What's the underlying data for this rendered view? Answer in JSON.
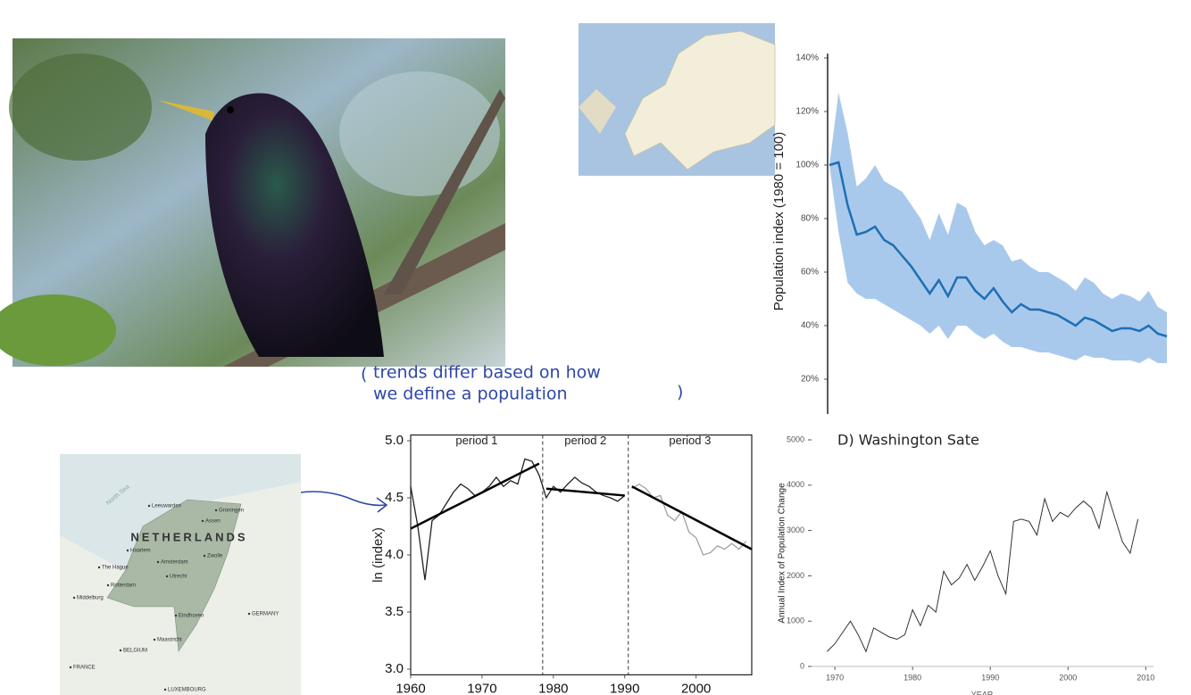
{
  "annotation": {
    "lines": [
      "trends differ based on how",
      "we define a population"
    ]
  },
  "netherlands_map": {
    "country": "NETHERLANDS",
    "sea": "North Sea",
    "places": [
      "Leeuwarden",
      "Groningen",
      "Assen",
      "Haarlem",
      "Amsterdam",
      "Zwolle",
      "The Hague",
      "Utrecht",
      "Rotterdam",
      "Middelburg",
      "Eindhoven",
      "Maastricht",
      "BELGIUM",
      "GERMANY",
      "FRANCE",
      "LUXEMBOURG"
    ]
  },
  "chart_data": [
    {
      "type": "line",
      "y_label": "Population index (1980 = 100)",
      "color": "#1f6fb4",
      "band_color": "#a9c9ec",
      "values": [
        100,
        101,
        85,
        74,
        75,
        77,
        72,
        70,
        66,
        62,
        57,
        52,
        57,
        51,
        58,
        58,
        53,
        50,
        54,
        49,
        45,
        48,
        46,
        46,
        45,
        44,
        42,
        40,
        43,
        42,
        40,
        38,
        39,
        39,
        38,
        40,
        37,
        36
      ],
      "lower": [
        100,
        75,
        56,
        52,
        50,
        50,
        48,
        46,
        44,
        42,
        40,
        37,
        40,
        35,
        40,
        40,
        37,
        35,
        37,
        34,
        32,
        32,
        31,
        30,
        30,
        29,
        28,
        27,
        29,
        28,
        28,
        27,
        27,
        27,
        26,
        28,
        26,
        26
      ],
      "upper": [
        100,
        127,
        112,
        92,
        95,
        100,
        94,
        92,
        90,
        85,
        80,
        72,
        82,
        74,
        86,
        84,
        75,
        70,
        72,
        70,
        64,
        65,
        62,
        60,
        60,
        58,
        56,
        53,
        58,
        56,
        52,
        50,
        52,
        51,
        49,
        53,
        47,
        45
      ],
      "ylim": [
        7,
        143
      ],
      "yticks": [
        {
          "value": 20,
          "label": "20%"
        },
        {
          "value": 40,
          "label": "40%"
        },
        {
          "value": 60,
          "label": "60%"
        },
        {
          "value": 80,
          "label": "80%"
        },
        {
          "value": 100,
          "label": "100%"
        },
        {
          "value": 120,
          "label": "120%"
        },
        {
          "value": 140,
          "label": "140%"
        }
      ]
    },
    {
      "type": "line",
      "y_label": "ln (index)",
      "xlim": [
        1960,
        2007.8
      ],
      "xticks": [
        1960,
        1970,
        1980,
        1990,
        2000
      ],
      "ylim": [
        2.95,
        5.05
      ],
      "yticks": [
        {
          "value": 3,
          "label": "3.0"
        },
        3.5,
        {
          "value": 4,
          "label": "4.0"
        },
        4.5,
        {
          "value": 5,
          "label": "5.0"
        }
      ],
      "periods": [
        "period 1",
        "period 2",
        "period 3"
      ],
      "breaks": [
        1978.5,
        1990.5
      ],
      "series": [
        {
          "color": "#222222",
          "width": 1.3,
          "x": [
            1960,
            1961,
            1962,
            1963,
            1964,
            1965,
            1966,
            1967,
            1968,
            1969,
            1970,
            1971,
            1972,
            1973,
            1974,
            1975,
            1976,
            1977,
            1978,
            1979,
            1980,
            1981,
            1982,
            1983,
            1984,
            1985,
            1986,
            1987,
            1988,
            1989,
            1990
          ],
          "values": [
            4.6,
            4.25,
            3.78,
            4.3,
            4.35,
            4.45,
            4.55,
            4.62,
            4.58,
            4.52,
            4.55,
            4.6,
            4.68,
            4.6,
            4.65,
            4.62,
            4.84,
            4.82,
            4.7,
            4.5,
            4.6,
            4.55,
            4.62,
            4.68,
            4.63,
            4.6,
            4.55,
            4.52,
            4.5,
            4.47,
            4.52
          ]
        },
        {
          "color": "#a0a0a0",
          "width": 1.3,
          "x": [
            1991,
            1992,
            1993,
            1994,
            1995,
            1996,
            1997,
            1998,
            1999,
            2000,
            2001,
            2002,
            2003,
            2004,
            2005,
            2006,
            2007
          ],
          "values": [
            4.58,
            4.62,
            4.58,
            4.5,
            4.52,
            4.35,
            4.3,
            4.38,
            4.2,
            4.15,
            4.0,
            4.02,
            4.08,
            4.05,
            4.1,
            4.05,
            4.12
          ]
        },
        {
          "color": "#000000",
          "width": 2.5,
          "x": [
            1960,
            1978
          ],
          "values": [
            4.23,
            4.8
          ]
        },
        {
          "color": "#000000",
          "width": 2.5,
          "x": [
            1979,
            1990
          ],
          "values": [
            4.58,
            4.52
          ]
        },
        {
          "color": "#000000",
          "width": 2.5,
          "x": [
            1991,
            2007.8
          ],
          "values": [
            4.6,
            4.05
          ]
        }
      ]
    },
    {
      "type": "line",
      "title": "D) Washington Sate",
      "y_label": "Annual Index of Population Change",
      "x_label": "YEAR",
      "xlim": [
        1967,
        2011
      ],
      "xticks": [
        1970,
        1980,
        1990,
        2000,
        2010
      ],
      "ylim": [
        0,
        5000
      ],
      "yticks": [
        0,
        1000,
        2000,
        3000,
        4000,
        5000
      ],
      "series": [
        {
          "color": "#333333",
          "width": 1,
          "x": [
            1969,
            1970,
            1971,
            1972,
            1973,
            1974,
            1975,
            1976,
            1977,
            1978,
            1979,
            1980,
            1981,
            1982,
            1983,
            1984,
            1985,
            1986,
            1987,
            1988,
            1989,
            1990,
            1991,
            1992,
            1993,
            1994,
            1995,
            1996,
            1997,
            1998,
            1999,
            2000,
            2001,
            2002,
            2003,
            2004,
            2005,
            2006,
            2007,
            2008,
            2009
          ],
          "values": [
            330,
            500,
            750,
            1000,
            700,
            330,
            850,
            750,
            650,
            600,
            700,
            1250,
            900,
            1350,
            1200,
            2100,
            1800,
            1950,
            2250,
            1900,
            2200,
            2550,
            2000,
            1600,
            3200,
            3250,
            3200,
            2900,
            3700,
            3200,
            3400,
            3300,
            3500,
            3650,
            3500,
            3050,
            3850,
            3300,
            2750,
            2500,
            3250
          ]
        }
      ]
    }
  ]
}
